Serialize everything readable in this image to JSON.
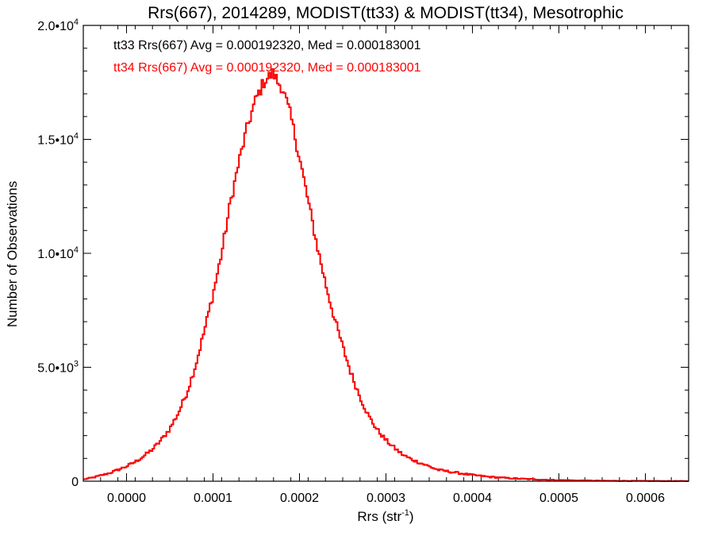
{
  "chart_data": {
    "type": "line",
    "title": "Rrs(667), 2014289, MODIST(tt33) & MODIST(tt34), Mesotrophic",
    "xlabel": "Rrs (str",
    "xlabel_sup": "-1",
    "xlabel_end": ")",
    "ylabel": "Number of Observations",
    "xlim": [
      -5e-05,
      0.00065
    ],
    "ylim": [
      0,
      20000
    ],
    "xticks": [
      0.0,
      0.0001,
      0.0002,
      0.0003,
      0.0004,
      0.0005,
      0.0006
    ],
    "xtick_labels": [
      "0.0000",
      "0.0001",
      "0.0002",
      "0.0003",
      "0.0004",
      "0.0005",
      "0.0006"
    ],
    "yticks": [
      {
        "value": 0,
        "base": "0",
        "exp": ""
      },
      {
        "value": 5000,
        "base": "5.0•10",
        "exp": "3"
      },
      {
        "value": 10000,
        "base": "1.0•10",
        "exp": "4"
      },
      {
        "value": 15000,
        "base": "1.5•10",
        "exp": "4"
      },
      {
        "value": 20000,
        "base": "2.0•10",
        "exp": "4"
      }
    ],
    "annotations": [
      "tt33 Rrs(667) Avg = 0.000192320, Med = 0.000183001",
      "tt34 Rrs(667) Avg = 0.000192320, Med = 0.000183001"
    ],
    "colors": {
      "tt33": "#000000",
      "tt34": "#ff0000"
    },
    "bin_start": -5e-05,
    "bin_width": 2e-06,
    "series": [
      {
        "name": "tt33",
        "color": "#000000"
      },
      {
        "name": "tt34",
        "color": "#ff0000"
      }
    ],
    "x": [
      -5e-05,
      -4e-05,
      -3e-05,
      -2e-05,
      -1e-05,
      0.0,
      1e-05,
      2e-05,
      3e-05,
      4e-05,
      5e-05,
      6e-05,
      7e-05,
      8e-05,
      9e-05,
      0.0001,
      0.00011,
      0.00012,
      0.00013,
      0.00014,
      0.00015,
      0.00016,
      0.00017,
      0.000175,
      0.00018,
      0.00019,
      0.0002,
      0.00021,
      0.00022,
      0.00023,
      0.00024,
      0.00025,
      0.00026,
      0.00027,
      0.00028,
      0.00029,
      0.0003,
      0.00031,
      0.00032,
      0.00033,
      0.00034,
      0.00035,
      0.00036,
      0.00038,
      0.0004,
      0.00042,
      0.00044,
      0.00046,
      0.00048,
      0.0005,
      0.00052,
      0.00055,
      0.0006,
      0.00065
    ],
    "y": [
      80,
      150,
      250,
      350,
      500,
      650,
      850,
      1100,
      1400,
      1800,
      2300,
      3000,
      3900,
      5100,
      6600,
      8200,
      10000,
      12200,
      14000,
      15600,
      16800,
      17600,
      17900,
      17500,
      17300,
      16000,
      14200,
      12300,
      10400,
      8700,
      7200,
      5900,
      4700,
      3700,
      2850,
      2250,
      1800,
      1450,
      1150,
      950,
      800,
      650,
      500,
      380,
      270,
      190,
      140,
      100,
      70,
      50,
      35,
      20,
      10,
      5
    ]
  }
}
